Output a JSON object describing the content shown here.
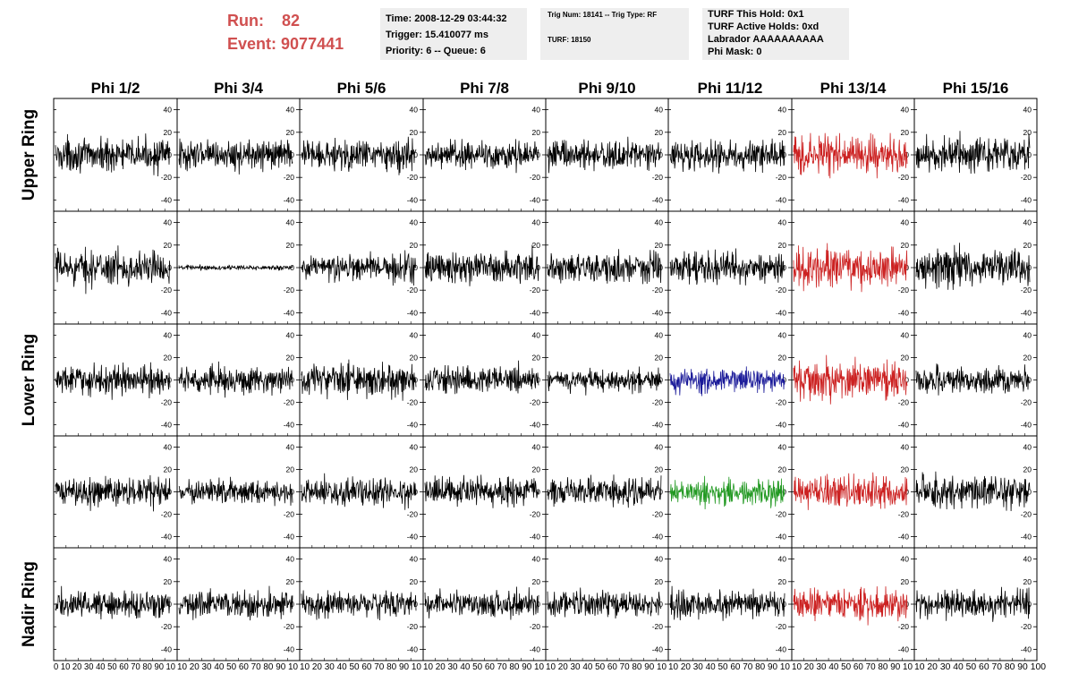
{
  "header": {
    "run_label": "Run:",
    "run_value": "82",
    "event_label": "Event:",
    "event_value": "9077441"
  },
  "info_box_1": {
    "time": "Time: 2008-12-29 03:44:32",
    "trigger": "Trigger: 15.410077 ms",
    "priority": "Priority: 6 -- Queue: 6"
  },
  "info_box_2": {
    "trig": "Trig Num: 18141 -- Trig Type: RF",
    "turf": "TURF: 18150"
  },
  "info_box_3": {
    "this_hold": "TURF This Hold: 0x1",
    "active_holds": "TURF Active Holds: 0xd",
    "labrador": "Labrador AAAAAAAAAA",
    "phi_mask": "Phi Mask: 0"
  },
  "chart_data": {
    "type": "line",
    "columns": [
      "Phi 1/2",
      "Phi 3/4",
      "Phi 5/6",
      "Phi 7/8",
      "Phi 9/10",
      "Phi 11/12",
      "Phi 13/14",
      "Phi 15/16"
    ],
    "rows": [
      "Upper Ring",
      "",
      "Lower Ring",
      "",
      "Nadir Ring"
    ],
    "ylim": [
      -50,
      50
    ],
    "yticks": [
      "40",
      "20",
      "0",
      "-20",
      "-40"
    ],
    "xlim": [
      0,
      100
    ],
    "xtick_label_strings": [
      "0 10 20 30 40 50 60 70 80 90 10",
      "10 20 30 40 50 60 70 80 90 10",
      "10 20 30 40 50 60 70 80 90 10",
      "10 20 30 40 50 60 70 80 90 10",
      "10 20 30 40 50 60 70 80 90 10",
      "10 20 30 40 50 60 70 80 90 10",
      "10 20 30 40 50 60 70 80 90 10",
      "10 20 30 40 50 60 70 80 90 100"
    ],
    "trace_colors": [
      [
        "#000000",
        "#000000",
        "#000000",
        "#000000",
        "#000000",
        "#000000",
        "#cc2222",
        "#000000"
      ],
      [
        "#000000",
        "#000000",
        "#000000",
        "#000000",
        "#000000",
        "#000000",
        "#cc2222",
        "#000000"
      ],
      [
        "#000000",
        "#000000",
        "#000000",
        "#000000",
        "#000000",
        "#1a1a99",
        "#cc2222",
        "#000000"
      ],
      [
        "#000000",
        "#000000",
        "#000000",
        "#000000",
        "#000000",
        "#229922",
        "#cc2222",
        "#000000"
      ],
      [
        "#000000",
        "#000000",
        "#000000",
        "#000000",
        "#000000",
        "#000000",
        "#cc2222",
        "#000000"
      ]
    ],
    "trace_amplitudes": [
      [
        13,
        12,
        13,
        12,
        12,
        12,
        16,
        14
      ],
      [
        14,
        2,
        12,
        13,
        13,
        12,
        16,
        15
      ],
      [
        12,
        11,
        13,
        11,
        9,
        10,
        16,
        11
      ],
      [
        12,
        10,
        11,
        12,
        12,
        11,
        13,
        14
      ],
      [
        11,
        11,
        11,
        11,
        11,
        12,
        13,
        12
      ]
    ],
    "grid": false
  }
}
